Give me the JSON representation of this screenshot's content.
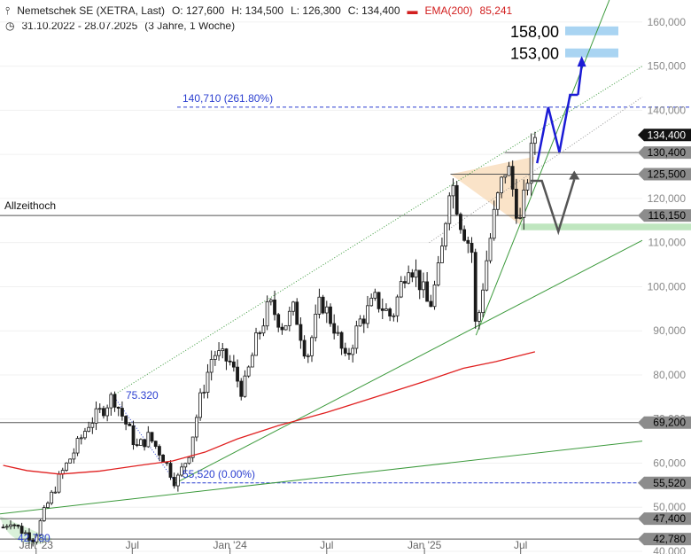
{
  "header": {
    "title": "Nemetschek SE (XETRA, Last)",
    "open": "O: 127,600",
    "high": "H: 134,500",
    "low": "L: 126,300",
    "close": "C: 134,400",
    "ema_label": "EMA(200)",
    "ema_value": "85,241",
    "range": "31.10.2022 - 28.07.2025",
    "period": "(3 Jahre, 1 Woche)"
  },
  "colors": {
    "candle": "#1a1a1a",
    "ema": "#e02020",
    "trend": "#3c9a3c",
    "fib": "#2b3fd0",
    "projection_up": "#1b1bd6",
    "projection_side": "#555555",
    "target_zone": "#a9d4f2",
    "support_zone": "#bfe6bf",
    "triangle": "#f8d7b0"
  },
  "chart_data": {
    "type": "candlestick",
    "instrument": "Nemetschek SE (XETRA, Last)",
    "ylim": [
      40000,
      165000
    ],
    "y_ticks": [
      40000,
      50000,
      60000,
      70000,
      80000,
      90000,
      100000,
      110000,
      120000,
      130000,
      140000,
      150000,
      160000
    ],
    "y_tick_labels": [
      "40,000",
      "50,000",
      "60,000",
      "70,000",
      "80,000",
      "90,000",
      "100,000",
      "110,000",
      "120,000",
      "130,000",
      "140,000",
      "150,000",
      "160,000"
    ],
    "x_ticks": [
      "2023-01-01",
      "2023-07-01",
      "2024-01-01",
      "2024-07-01",
      "2025-01-01",
      "2025-07-01"
    ],
    "x_tick_labels": [
      "Jan '23",
      "Jul",
      "Jan '24",
      "Jul",
      "Jan '25",
      "Jul"
    ],
    "xlim": [
      "2022-10-25",
      "2026-02-15"
    ],
    "anchors": [
      [
        "2022-10-31",
        45500
      ],
      [
        "2022-11-14",
        47000
      ],
      [
        "2022-12-01",
        45000
      ],
      [
        "2022-12-28",
        42780
      ],
      [
        "2023-01-20",
        50000
      ],
      [
        "2023-02-15",
        57000
      ],
      [
        "2023-03-15",
        63000
      ],
      [
        "2023-04-10",
        69000
      ],
      [
        "2023-05-05",
        72000
      ],
      [
        "2023-05-26",
        75320
      ],
      [
        "2023-06-15",
        70000
      ],
      [
        "2023-07-10",
        63500
      ],
      [
        "2023-08-01",
        66000
      ],
      [
        "2023-08-25",
        62000
      ],
      [
        "2023-09-21",
        55520
      ],
      [
        "2023-10-15",
        62000
      ],
      [
        "2023-11-05",
        74000
      ],
      [
        "2023-11-30",
        85000
      ],
      [
        "2023-12-31",
        83000
      ],
      [
        "2024-01-25",
        76000
      ],
      [
        "2024-02-20",
        88000
      ],
      [
        "2024-03-15",
        96000
      ],
      [
        "2024-04-10",
        91000
      ],
      [
        "2024-05-01",
        95000
      ],
      [
        "2024-05-25",
        84000
      ],
      [
        "2024-06-20",
        97000
      ],
      [
        "2024-07-15",
        91000
      ],
      [
        "2024-08-05",
        83000
      ],
      [
        "2024-09-01",
        92000
      ],
      [
        "2024-10-01",
        97000
      ],
      [
        "2024-11-01",
        93000
      ],
      [
        "2024-12-01",
        106000
      ],
      [
        "2024-12-20",
        102000
      ],
      [
        "2025-01-10",
        95000
      ],
      [
        "2025-01-31",
        105000
      ],
      [
        "2025-02-19",
        125500
      ],
      [
        "2025-03-10",
        115000
      ],
      [
        "2025-03-31",
        108000
      ],
      [
        "2025-04-08",
        89000
      ],
      [
        "2025-04-25",
        104000
      ],
      [
        "2025-05-15",
        118000
      ],
      [
        "2025-06-05",
        128000
      ],
      [
        "2025-06-20",
        120000
      ],
      [
        "2025-07-01",
        114000
      ],
      [
        "2025-07-15",
        126000
      ],
      [
        "2025-07-28",
        134400
      ]
    ],
    "ema200": {
      "label": "EMA(200)",
      "last": 85241,
      "points": [
        [
          "2022-10-31",
          59500
        ],
        [
          "2022-12-15",
          58300
        ],
        [
          "2023-02-15",
          57500
        ],
        [
          "2023-05-01",
          58200
        ],
        [
          "2023-07-15",
          59500
        ],
        [
          "2023-09-15",
          60500
        ],
        [
          "2023-11-15",
          62500
        ],
        [
          "2024-01-15",
          65500
        ],
        [
          "2024-04-01",
          68500
        ],
        [
          "2024-07-01",
          71500
        ],
        [
          "2024-10-01",
          75000
        ],
        [
          "2025-01-01",
          78500
        ],
        [
          "2025-03-15",
          81500
        ],
        [
          "2025-05-15",
          83000
        ],
        [
          "2025-07-28",
          85241
        ]
      ]
    },
    "last_close": 134400,
    "last_close_label": "134,400",
    "horizontal_levels": [
      {
        "value": 130400,
        "label": "130,400"
      },
      {
        "value": 125500,
        "label": "125,500"
      },
      {
        "value": 116150,
        "label": "116,150"
      },
      {
        "value": 69200,
        "label": "69,200"
      },
      {
        "value": 55520,
        "label": "55,520"
      },
      {
        "value": 47400,
        "label": "47,400"
      },
      {
        "value": 42780,
        "label": "42,780"
      }
    ],
    "targets": [
      {
        "value": 158000,
        "label": "158,00"
      },
      {
        "value": 153000,
        "label": "153,00"
      }
    ],
    "fib_extension": {
      "value": 140710,
      "label": "140,710 (261.80%)"
    },
    "fib_base": {
      "value": 55520,
      "label": "55,520 (0.00%)"
    },
    "swing_high_label": "75.320",
    "swing_low_label": "42.780",
    "all_time_high_label": "Allzeithoch",
    "all_time_high_value": 116150,
    "support_zone": [
      112800,
      114300
    ],
    "trend_lines": [
      {
        "name": "long-term-support",
        "from": [
          "2022-10-25",
          48500
        ],
        "to": [
          "2026-02-15",
          65000
        ]
      },
      {
        "name": "mid-term-support",
        "from": [
          "2023-09-21",
          55520
        ],
        "to": [
          "2026-02-15",
          110500
        ]
      },
      {
        "name": "steep-support",
        "from": [
          "2025-04-08",
          89000
        ],
        "to": [
          "2025-12-15",
          165000
        ]
      },
      {
        "name": "upper-channel",
        "from": [
          "2023-05-26",
          75320
        ],
        "to": [
          "2026-02-15",
          150000
        ]
      },
      {
        "name": "channel-parallel",
        "from": [
          "2025-01-10",
          110000
        ],
        "to": [
          "2026-02-15",
          143000
        ]
      }
    ],
    "triangle": [
      [
        "2025-02-19",
        125500
      ],
      [
        "2025-07-28",
        129500
      ],
      [
        "2025-07-01",
        114000
      ]
    ],
    "projection_up": [
      [
        "2025-08-01",
        128000
      ],
      [
        "2025-08-22",
        140710
      ],
      [
        "2025-09-12",
        130500
      ],
      [
        "2025-10-02",
        143500
      ],
      [
        "2025-10-17",
        143500
      ],
      [
        "2025-10-24",
        151500
      ]
    ],
    "projection_side": [
      [
        "2025-07-20",
        124000
      ],
      [
        "2025-08-10",
        124000
      ],
      [
        "2025-09-10",
        112500
      ],
      [
        "2025-10-10",
        125500
      ]
    ]
  }
}
